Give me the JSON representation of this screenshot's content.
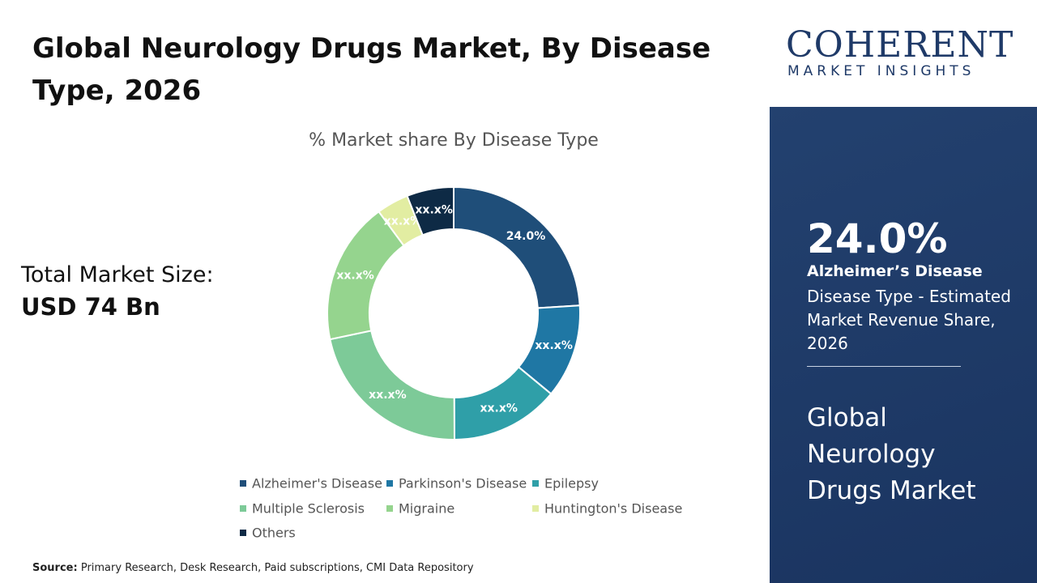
{
  "header": {
    "title": "Global Neurology Drugs Market, By Disease Type, 2026"
  },
  "total_market": {
    "label": "Total Market Size:",
    "value": "USD 74 Bn"
  },
  "chart_data": {
    "type": "pie",
    "title": "% Market share By Disease Type",
    "categories": [
      "Alzheimer's Disease",
      "Parkinson's Disease",
      "Epilepsy",
      "Multiple Sclerosis",
      "Migraine",
      "Huntington's Disease",
      "Others"
    ],
    "values": [
      24.0,
      12.0,
      13.9,
      21.8,
      18.2,
      4.1,
      6.0
    ],
    "value_labels": [
      "24.0%",
      "xx.x%",
      "xx.x%",
      "xx.x%",
      "xx.x%",
      "xx.x%",
      "xx.x%"
    ],
    "colors": [
      "#1f4e79",
      "#1f77a4",
      "#2f9fa8",
      "#7dca98",
      "#95d48e",
      "#e2eda2",
      "#0e2a45"
    ]
  },
  "side_panel": {
    "value": "24.0%",
    "segment": "Alzheimer’s Disease",
    "description": "Disease Type - Estimated Market Revenue Share, 2026",
    "market_name": "Global Neurology Drugs Market"
  },
  "source": {
    "label": "Source:",
    "text": "Primary Research, Desk Research, Paid subscriptions, CMI Data Repository"
  },
  "logo": {
    "name": "COHERENT",
    "tagline": "MARKET INSIGHTS"
  }
}
